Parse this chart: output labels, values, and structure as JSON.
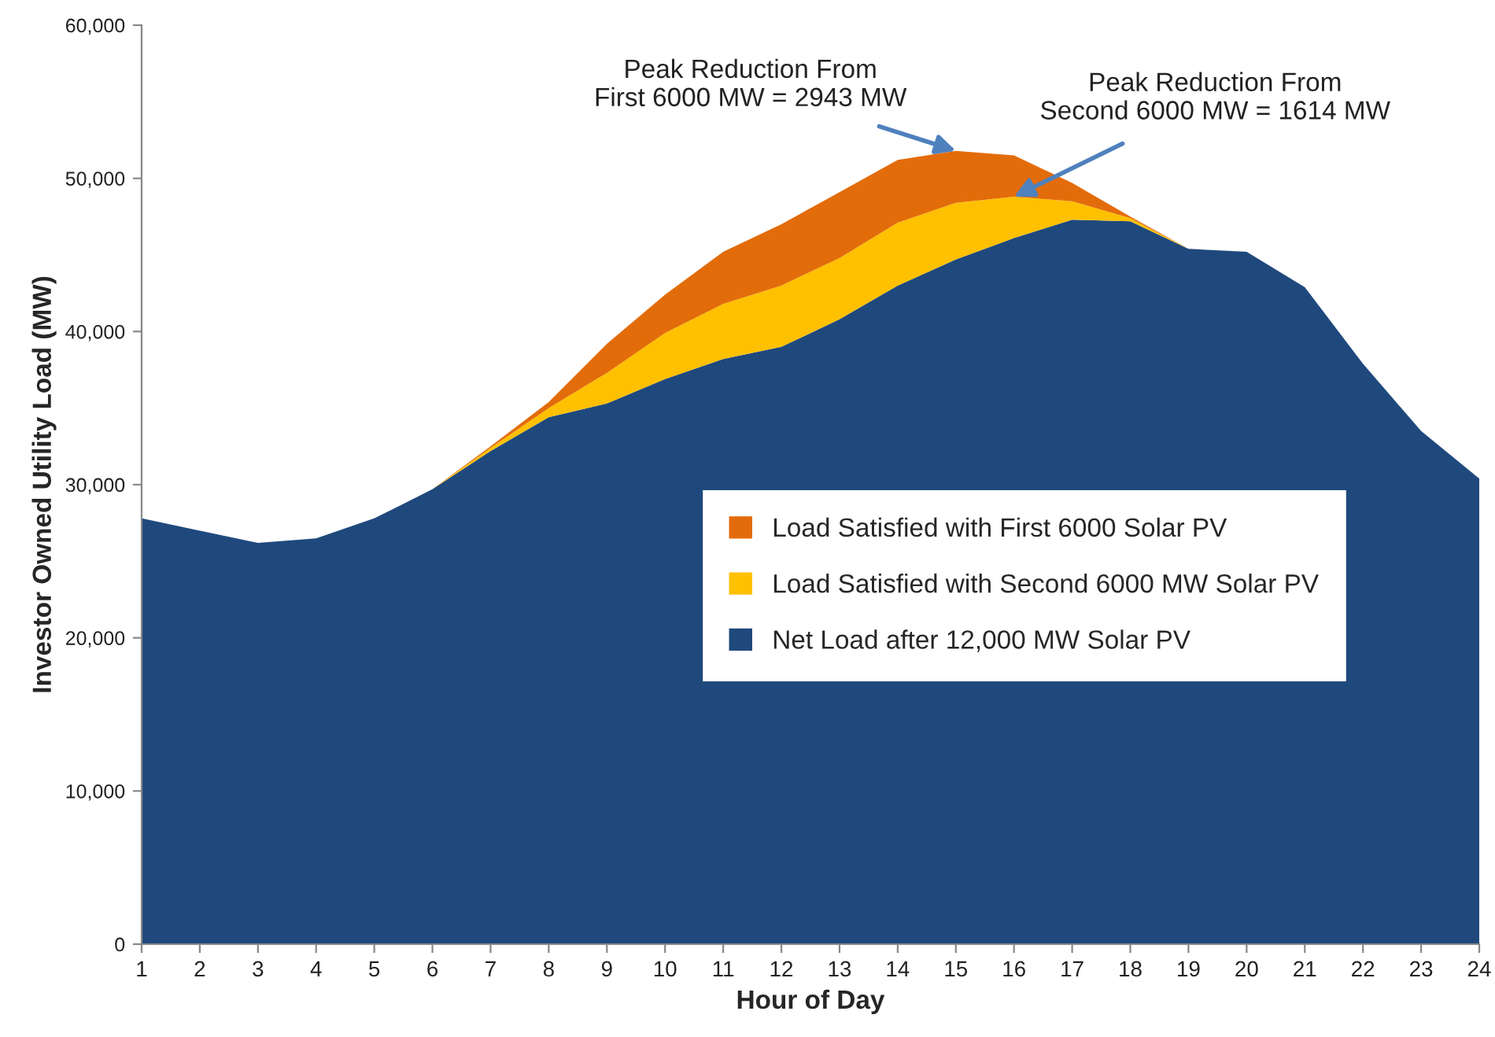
{
  "chart_data": {
    "type": "area",
    "stacked": true,
    "xlabel": "Hour of Day",
    "ylabel": "Investor Owned Utility Load (MW)",
    "x": [
      1,
      2,
      3,
      4,
      5,
      6,
      7,
      8,
      9,
      10,
      11,
      12,
      13,
      14,
      15,
      16,
      17,
      18,
      19,
      20,
      21,
      22,
      23,
      24
    ],
    "series": [
      {
        "name": "Net Load after 12,000 MW Solar PV",
        "color": "#1f497d",
        "values": [
          27800,
          27000,
          26200,
          26500,
          27800,
          29700,
          32200,
          34400,
          35300,
          36900,
          38200,
          39000,
          40800,
          43000,
          44700,
          46100,
          47300,
          47200,
          45400,
          45200,
          42900,
          37900,
          33500,
          30400
        ]
      },
      {
        "name": "Load Satisfied with Second 6000 MW Solar PV",
        "color": "#ffc000",
        "values": [
          0,
          0,
          0,
          0,
          0,
          0,
          200,
          600,
          2000,
          3000,
          3600,
          4000,
          4000,
          4100,
          3700,
          2700,
          1200,
          200,
          0,
          0,
          0,
          0,
          0,
          0
        ]
      },
      {
        "name": "Load Satisfied with First 6000 Solar PV",
        "color": "#e36c0a",
        "values": [
          0,
          0,
          0,
          0,
          0,
          0,
          100,
          400,
          1900,
          2500,
          3400,
          4000,
          4300,
          4100,
          3400,
          2700,
          1200,
          100,
          0,
          0,
          0,
          0,
          0,
          0
        ]
      }
    ],
    "xlim": [
      1,
      24
    ],
    "xticks": [
      1,
      2,
      3,
      4,
      5,
      6,
      7,
      8,
      9,
      10,
      11,
      12,
      13,
      14,
      15,
      16,
      17,
      18,
      19,
      20,
      21,
      22,
      23,
      24
    ],
    "ylim": [
      0,
      60000
    ],
    "yticks": [
      0,
      {
        "value": 10000,
        "label": "10,000"
      },
      {
        "value": 20000,
        "label": "20,000"
      },
      {
        "value": 30000,
        "label": "30,000"
      },
      {
        "value": 40000,
        "label": "40,000"
      },
      {
        "value": 50000,
        "label": "50,000"
      },
      {
        "value": 60000,
        "label": "60,000"
      }
    ],
    "annotations": [
      {
        "text": "Peak Reduction From\nFirst 6000 MW = 2943 MW",
        "x": 15,
        "y": 51800
      },
      {
        "text": "Peak Reduction From\nSecond 6000 MW = 1614 MW",
        "x": 16,
        "y": 48800
      }
    ],
    "legend": "center",
    "grid": false
  }
}
